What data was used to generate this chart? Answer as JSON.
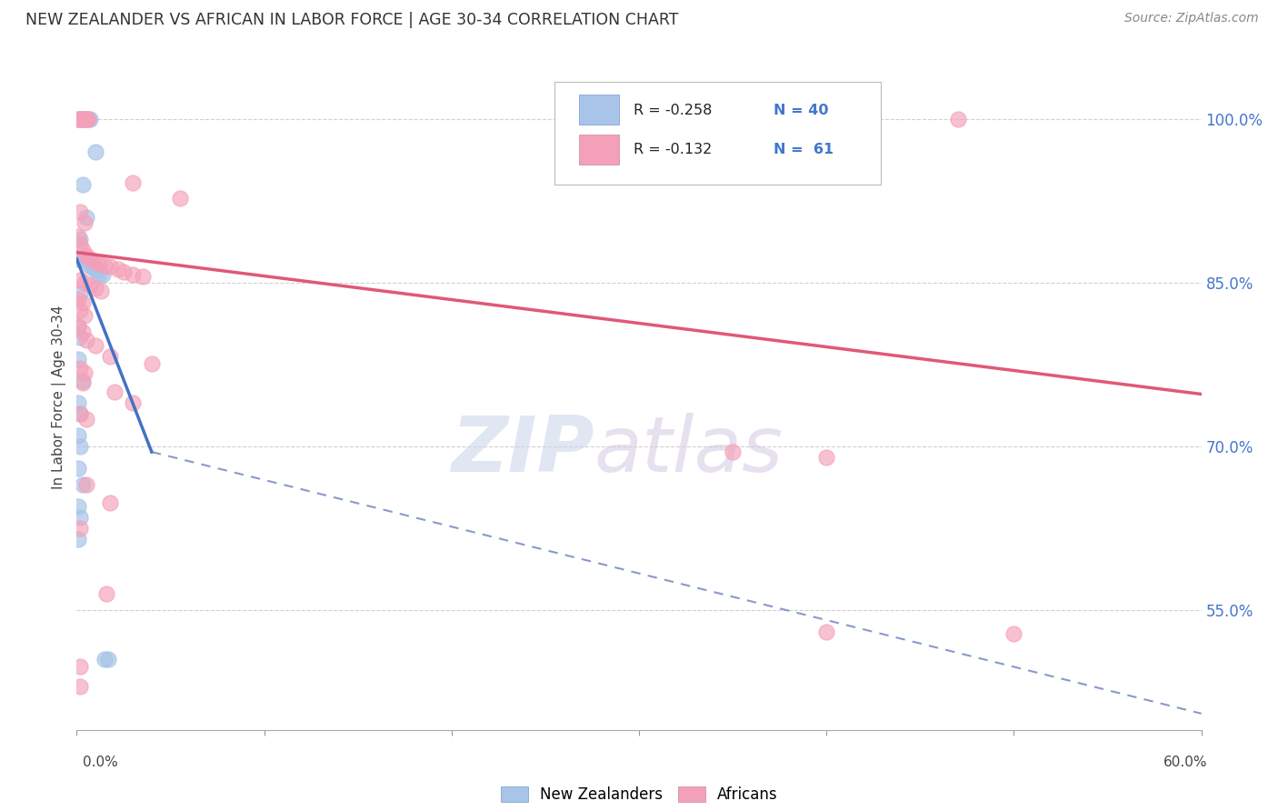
{
  "title": "NEW ZEALANDER VS AFRICAN IN LABOR FORCE | AGE 30-34 CORRELATION CHART",
  "source": "Source: ZipAtlas.com",
  "ylabel": "In Labor Force | Age 30-34",
  "right_ytick_vals": [
    0.55,
    0.7,
    0.85,
    1.0
  ],
  "xmin": 0.0,
  "xmax": 0.6,
  "ymin": 0.44,
  "ymax": 1.05,
  "color_blue": "#a8c4e8",
  "color_pink": "#f4a0b8",
  "color_blue_line": "#4472c4",
  "color_pink_line": "#e05878",
  "watermark_zip": "ZIP",
  "watermark_atlas": "atlas",
  "blue_scatter": [
    [
      0.001,
      1.0
    ],
    [
      0.002,
      1.0
    ],
    [
      0.003,
      1.0
    ],
    [
      0.004,
      1.0
    ],
    [
      0.005,
      1.0
    ],
    [
      0.006,
      1.0
    ],
    [
      0.007,
      1.0
    ],
    [
      0.01,
      0.97
    ],
    [
      0.003,
      0.94
    ],
    [
      0.005,
      0.91
    ],
    [
      0.002,
      0.89
    ],
    [
      0.001,
      0.872
    ],
    [
      0.002,
      0.872
    ],
    [
      0.003,
      0.872
    ],
    [
      0.004,
      0.872
    ],
    [
      0.005,
      0.872
    ],
    [
      0.006,
      0.872
    ],
    [
      0.007,
      0.865
    ],
    [
      0.008,
      0.865
    ],
    [
      0.009,
      0.865
    ],
    [
      0.01,
      0.862
    ],
    [
      0.011,
      0.862
    ],
    [
      0.012,
      0.858
    ],
    [
      0.014,
      0.858
    ],
    [
      0.002,
      0.84
    ],
    [
      0.001,
      0.81
    ],
    [
      0.002,
      0.8
    ],
    [
      0.001,
      0.78
    ],
    [
      0.003,
      0.76
    ],
    [
      0.001,
      0.74
    ],
    [
      0.002,
      0.73
    ],
    [
      0.001,
      0.71
    ],
    [
      0.002,
      0.7
    ],
    [
      0.001,
      0.68
    ],
    [
      0.003,
      0.665
    ],
    [
      0.001,
      0.645
    ],
    [
      0.002,
      0.635
    ],
    [
      0.001,
      0.615
    ],
    [
      0.015,
      0.505
    ],
    [
      0.017,
      0.505
    ]
  ],
  "pink_scatter": [
    [
      0.001,
      1.0
    ],
    [
      0.002,
      1.0
    ],
    [
      0.003,
      1.0
    ],
    [
      0.004,
      1.0
    ],
    [
      0.005,
      1.0
    ],
    [
      0.006,
      1.0
    ],
    [
      0.47,
      1.0
    ],
    [
      0.03,
      0.942
    ],
    [
      0.055,
      0.928
    ],
    [
      0.002,
      0.915
    ],
    [
      0.004,
      0.905
    ],
    [
      0.001,
      0.893
    ],
    [
      0.002,
      0.885
    ],
    [
      0.003,
      0.88
    ],
    [
      0.005,
      0.875
    ],
    [
      0.007,
      0.872
    ],
    [
      0.009,
      0.87
    ],
    [
      0.012,
      0.868
    ],
    [
      0.015,
      0.866
    ],
    [
      0.018,
      0.865
    ],
    [
      0.022,
      0.863
    ],
    [
      0.025,
      0.86
    ],
    [
      0.03,
      0.858
    ],
    [
      0.035,
      0.856
    ],
    [
      0.002,
      0.853
    ],
    [
      0.004,
      0.85
    ],
    [
      0.007,
      0.848
    ],
    [
      0.01,
      0.845
    ],
    [
      0.013,
      0.843
    ],
    [
      0.001,
      0.835
    ],
    [
      0.003,
      0.832
    ],
    [
      0.002,
      0.825
    ],
    [
      0.004,
      0.82
    ],
    [
      0.001,
      0.81
    ],
    [
      0.003,
      0.805
    ],
    [
      0.005,
      0.798
    ],
    [
      0.01,
      0.793
    ],
    [
      0.018,
      0.783
    ],
    [
      0.04,
      0.776
    ],
    [
      0.002,
      0.772
    ],
    [
      0.004,
      0.768
    ],
    [
      0.003,
      0.758
    ],
    [
      0.02,
      0.75
    ],
    [
      0.03,
      0.74
    ],
    [
      0.002,
      0.73
    ],
    [
      0.005,
      0.725
    ],
    [
      0.35,
      0.695
    ],
    [
      0.4,
      0.69
    ],
    [
      0.005,
      0.665
    ],
    [
      0.018,
      0.648
    ],
    [
      0.002,
      0.625
    ],
    [
      0.016,
      0.565
    ],
    [
      0.4,
      0.53
    ],
    [
      0.5,
      0.528
    ],
    [
      0.002,
      0.498
    ],
    [
      0.002,
      0.48
    ]
  ],
  "blue_line": [
    [
      0.0,
      0.872
    ],
    [
      0.04,
      0.695
    ]
  ],
  "pink_line": [
    [
      0.0,
      0.878
    ],
    [
      0.6,
      0.748
    ]
  ],
  "dash_line": [
    [
      0.04,
      0.695
    ],
    [
      0.6,
      0.455
    ]
  ]
}
